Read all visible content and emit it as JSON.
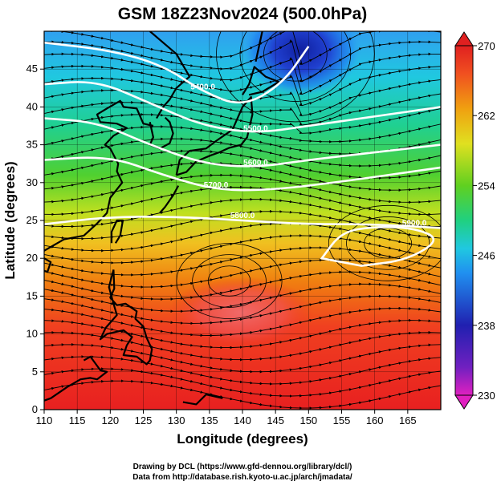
{
  "title": "GSM 18Z23Nov2024 (500.0hPa)",
  "xlabel": "Longitude (degrees)",
  "ylabel": "Latitude  (degrees)",
  "credits": [
    "Drawing by DCL (https://www.gfd-dennou.org/library/dcl/)",
    "Data from http://database.rish.kyoto-u.ac.jp/arch/jmadata/"
  ],
  "map": {
    "lon_range": [
      110,
      170
    ],
    "lat_range": [
      0,
      50
    ],
    "x_ticks": [
      "110",
      "115",
      "120",
      "125",
      "130",
      "135",
      "140",
      "145",
      "150",
      "155",
      "160",
      "165"
    ],
    "y_ticks": [
      "0",
      "5",
      "10",
      "15",
      "20",
      "25",
      "30",
      "35",
      "40",
      "45"
    ],
    "layers": [
      "temperature shading",
      "streamlines",
      "geopotential height contours",
      "coastlines",
      "grid"
    ],
    "colorbar": {
      "min": 230,
      "max": 270,
      "tick_labels": [
        "230",
        "238",
        "246",
        "254",
        "262",
        "270"
      ],
      "colors": [
        "#e020c0",
        "#3020b0",
        "#2060f0",
        "#20c0e0",
        "#20d060",
        "#a0e020",
        "#f0d020",
        "#f08010",
        "#f03020",
        "#e02020"
      ]
    },
    "contours": [
      {
        "label": "5400.0",
        "lat_at_lon": [
          [
            110,
            48.5
          ],
          [
            120,
            47.5
          ],
          [
            128,
            45.5
          ],
          [
            134,
            42
          ],
          [
            140,
            40
          ],
          [
            146,
            43
          ],
          [
            150,
            48
          ]
        ]
      },
      {
        "label": "5500.0",
        "lat_at_lon": [
          [
            110,
            43
          ],
          [
            118,
            43.5
          ],
          [
            126,
            40.5
          ],
          [
            134,
            37.5
          ],
          [
            142,
            36.5
          ],
          [
            150,
            37.5
          ],
          [
            158,
            38.5
          ],
          [
            170,
            40
          ]
        ]
      },
      {
        "label": "5600.0",
        "lat_at_lon": [
          [
            110,
            38.5
          ],
          [
            118,
            38
          ],
          [
            126,
            35
          ],
          [
            134,
            32.5
          ],
          [
            142,
            32
          ],
          [
            150,
            33
          ],
          [
            160,
            34
          ],
          [
            170,
            35
          ]
        ]
      },
      {
        "label": "5700.0",
        "lat_at_lon": [
          [
            110,
            33
          ],
          [
            120,
            33.5
          ],
          [
            128,
            31
          ],
          [
            136,
            29
          ],
          [
            144,
            29
          ],
          [
            154,
            30
          ],
          [
            170,
            32
          ]
        ]
      },
      {
        "label": "5800.0",
        "lat_at_lon": [
          [
            110,
            24.5
          ],
          [
            120,
            25.5
          ],
          [
            130,
            25.5
          ],
          [
            140,
            25
          ],
          [
            150,
            24.5
          ],
          [
            160,
            24.5
          ],
          [
            170,
            24
          ]
        ]
      },
      {
        "label": "5900.0",
        "lat_at_lon": [
          [
            152,
            20
          ],
          [
            155,
            23.5
          ],
          [
            160,
            24.2
          ],
          [
            166,
            24
          ],
          [
            170,
            22.5
          ],
          [
            165,
            19.8
          ],
          [
            158,
            19
          ]
        ]
      }
    ]
  }
}
